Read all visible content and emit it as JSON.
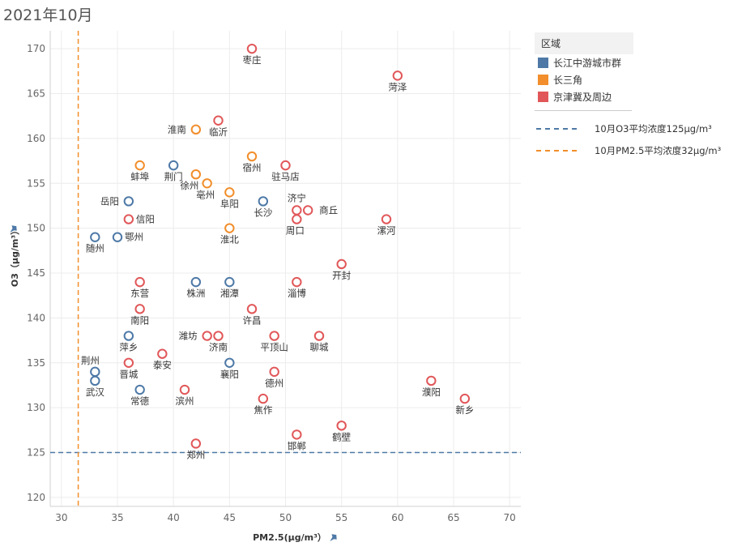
{
  "page_title": "2021年10月",
  "legend": {
    "header": "区域",
    "items": [
      {
        "label": "长江中游城市群",
        "color": "#4e79a7"
      },
      {
        "label": "长三角",
        "color": "#f28e2b"
      },
      {
        "label": "京津冀及周边",
        "color": "#e15759"
      }
    ],
    "reference_lines": [
      {
        "label": "10月O3平均浓度125μg/m³",
        "color": "#4e79a7"
      },
      {
        "label": "10月PM2.5平均浓度32μg/m³",
        "color": "#f28e2b"
      }
    ]
  },
  "chart_data": {
    "type": "scatter",
    "xlabel": "PM2.5(μg/m³）",
    "ylabel": "O3（μg/m³）",
    "xlim": [
      29,
      71
    ],
    "ylim": [
      119,
      172
    ],
    "xticks": [
      30,
      35,
      40,
      45,
      50,
      55,
      60,
      65,
      70
    ],
    "yticks": [
      120,
      125,
      130,
      135,
      140,
      145,
      150,
      155,
      160,
      165,
      170
    ],
    "grid": true,
    "legend_position": "right",
    "reference_lines": [
      {
        "axis": "y",
        "value": 125,
        "color": "#4e79a7"
      },
      {
        "axis": "x",
        "value": 31.5,
        "color": "#f28e2b"
      }
    ],
    "series": [
      {
        "name": "长江中游城市群",
        "color": "#4e79a7",
        "points": [
          {
            "city": "荆门",
            "x": 40,
            "y": 157
          },
          {
            "city": "岳阳",
            "x": 36,
            "y": 153
          },
          {
            "city": "长沙",
            "x": 48,
            "y": 153
          },
          {
            "city": "随州",
            "x": 33,
            "y": 149
          },
          {
            "city": "鄂州",
            "x": 35,
            "y": 149
          },
          {
            "city": "株洲",
            "x": 42,
            "y": 144
          },
          {
            "city": "湘潭",
            "x": 45,
            "y": 144
          },
          {
            "city": "萍乡",
            "x": 36,
            "y": 138
          },
          {
            "city": "襄阳",
            "x": 45,
            "y": 135
          },
          {
            "city": "荆州",
            "x": 33,
            "y": 134
          },
          {
            "city": "武汉",
            "x": 33,
            "y": 133
          },
          {
            "city": "常德",
            "x": 37,
            "y": 132
          }
        ]
      },
      {
        "name": "长三角",
        "color": "#f28e2b",
        "points": [
          {
            "city": "淮南",
            "x": 42,
            "y": 161
          },
          {
            "city": "蚌埠",
            "x": 37,
            "y": 157
          },
          {
            "city": "宿州",
            "x": 47,
            "y": 158
          },
          {
            "city": "徐州",
            "x": 42,
            "y": 156
          },
          {
            "city": "亳州",
            "x": 43,
            "y": 155
          },
          {
            "city": "阜阳",
            "x": 45,
            "y": 154
          },
          {
            "city": "淮北",
            "x": 45,
            "y": 150
          }
        ]
      },
      {
        "name": "京津冀及周边",
        "color": "#e15759",
        "points": [
          {
            "city": "枣庄",
            "x": 47,
            "y": 170
          },
          {
            "city": "菏泽",
            "x": 60,
            "y": 167
          },
          {
            "city": "临沂",
            "x": 44,
            "y": 162
          },
          {
            "city": "驻马店",
            "x": 50,
            "y": 157
          },
          {
            "city": "济宁",
            "x": 51,
            "y": 152
          },
          {
            "city": "商丘",
            "x": 52,
            "y": 152
          },
          {
            "city": "周口",
            "x": 51,
            "y": 151
          },
          {
            "city": "信阳",
            "x": 36,
            "y": 151
          },
          {
            "city": "漯河",
            "x": 59,
            "y": 151
          },
          {
            "city": "开封",
            "x": 55,
            "y": 146
          },
          {
            "city": "东营",
            "x": 37,
            "y": 144
          },
          {
            "city": "淄博",
            "x": 51,
            "y": 144
          },
          {
            "city": "南阳",
            "x": 37,
            "y": 141
          },
          {
            "city": "许昌",
            "x": 47,
            "y": 141
          },
          {
            "city": "潍坊",
            "x": 43,
            "y": 138
          },
          {
            "city": "济南",
            "x": 44,
            "y": 138
          },
          {
            "city": "平顶山",
            "x": 49,
            "y": 138
          },
          {
            "city": "聊城",
            "x": 53,
            "y": 138
          },
          {
            "city": "泰安",
            "x": 39,
            "y": 136
          },
          {
            "city": "晋城",
            "x": 36,
            "y": 135
          },
          {
            "city": "德州",
            "x": 49,
            "y": 134
          },
          {
            "city": "濮阳",
            "x": 63,
            "y": 133
          },
          {
            "city": "滨州",
            "x": 41,
            "y": 132
          },
          {
            "city": "焦作",
            "x": 48,
            "y": 131
          },
          {
            "city": "新乡",
            "x": 66,
            "y": 131
          },
          {
            "city": "鹤壁",
            "x": 55,
            "y": 128
          },
          {
            "city": "邯郸",
            "x": 51,
            "y": 127
          },
          {
            "city": "郑州",
            "x": 42,
            "y": 126
          }
        ]
      }
    ]
  }
}
